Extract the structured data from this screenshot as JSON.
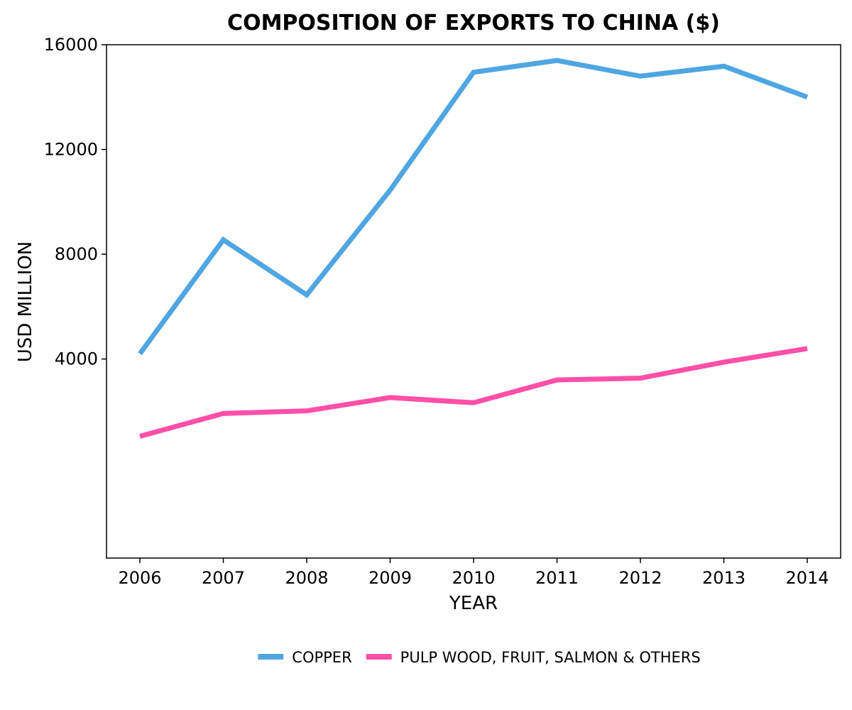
{
  "chart_data": {
    "type": "line",
    "title": "COMPOSITION OF EXPORTS TO CHINA ($)",
    "xlabel": "YEAR",
    "ylabel": "USD MILLION",
    "x": [
      "2006",
      "2007",
      "2008",
      "2009",
      "2010",
      "2011",
      "2012",
      "2013",
      "2014"
    ],
    "xlim": [
      2006,
      2014
    ],
    "ylim": [
      -3600,
      16000
    ],
    "yticks": [
      4000,
      8000,
      12000,
      16000
    ],
    "grid": false,
    "legend_position": "bottom-center",
    "series": [
      {
        "name": "COPPER",
        "color": "#4ea6e2",
        "values": [
          4200,
          8550,
          6450,
          10450,
          14950,
          15400,
          14800,
          15180,
          14000
        ]
      },
      {
        "name": "PULP WOOD, FRUIT, SALMON & OTHERS",
        "color": "#ff4fa8",
        "values": [
          1050,
          1920,
          2020,
          2530,
          2330,
          3200,
          3270,
          3880,
          4400
        ]
      }
    ]
  }
}
